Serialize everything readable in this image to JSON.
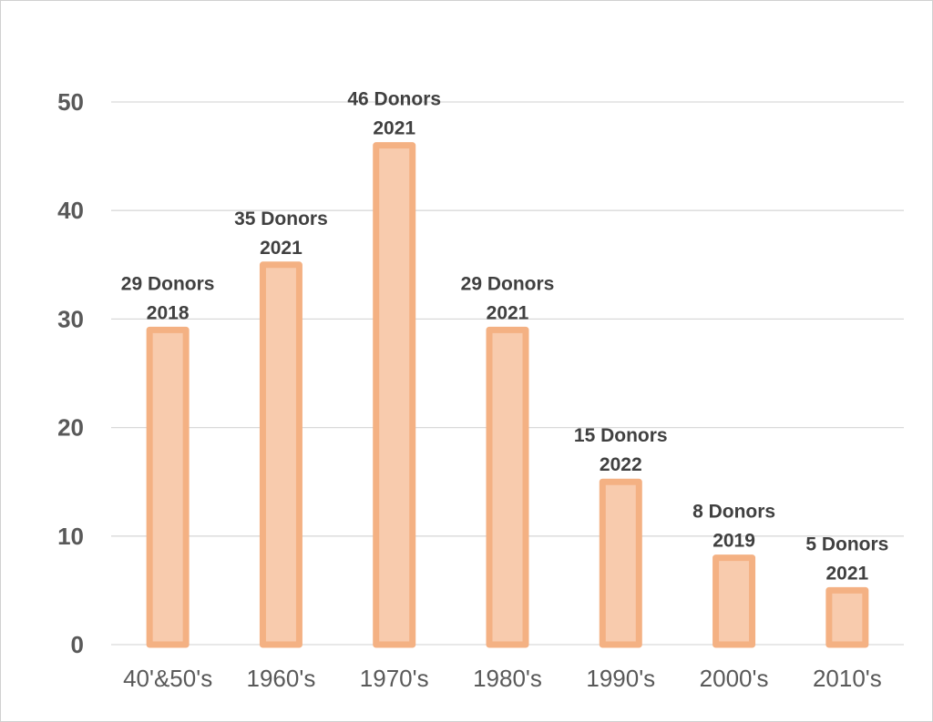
{
  "chart_data": {
    "type": "bar",
    "categories": [
      "40'&50's",
      "1960's",
      "1970's",
      "1980's",
      "1990's",
      "2000's",
      "2010's"
    ],
    "values": [
      29,
      35,
      46,
      29,
      15,
      8,
      5
    ],
    "data_labels": [
      [
        "29 Donors",
        "2018"
      ],
      [
        "35 Donors",
        "2021"
      ],
      [
        "46 Donors",
        "2021"
      ],
      [
        "29 Donors",
        "2021"
      ],
      [
        "15 Donors",
        "2022"
      ],
      [
        "8 Donors",
        "2019"
      ],
      [
        "5 Donors",
        "2021"
      ]
    ],
    "yticks": [
      "0",
      "10",
      "20",
      "30",
      "40",
      "50"
    ],
    "ylim": [
      0,
      50
    ],
    "title": "",
    "xlabel": "",
    "ylabel": "",
    "grid": true,
    "legend": "none",
    "colors": {
      "bar_fill": "#f8cbad",
      "bar_border": "#f4b183",
      "grid": "#d9d9d9",
      "text": "#595959"
    }
  }
}
